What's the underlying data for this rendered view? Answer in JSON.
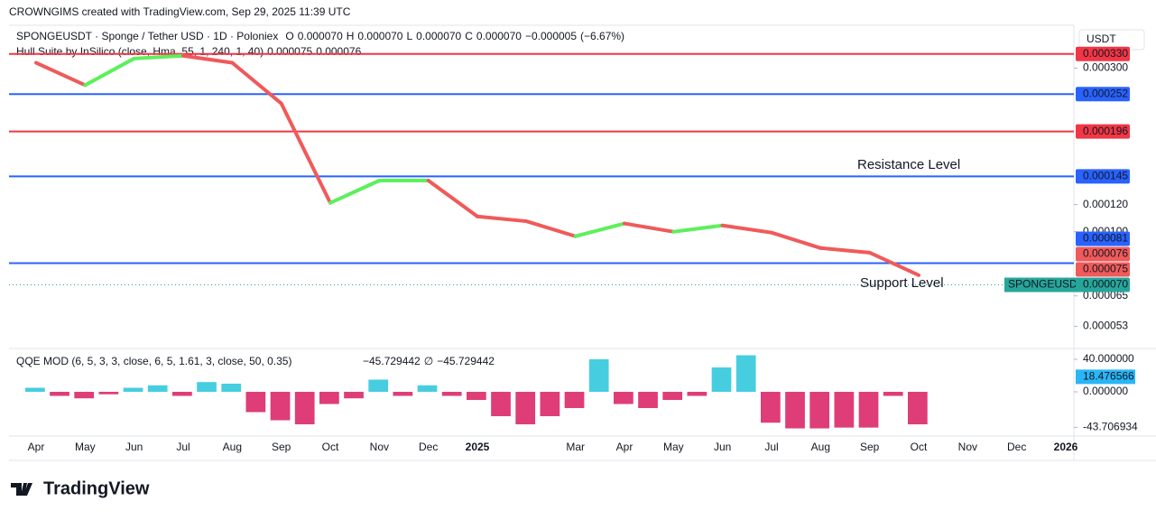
{
  "header": {
    "credit": "CROWNGIMS created with TradingView.com, Sep 29, 2025 11:39 UTC",
    "logo": "TradingView"
  },
  "chart_data": [
    {
      "type": "line",
      "title": "SPONGEUSDT · Sponge / Tether USD · 1D · Poloniex",
      "ohlc_names": [
        "O",
        "H",
        "L",
        "C"
      ],
      "ohlc": [
        {
          "value": 7e-05,
          "label": "0.000070"
        },
        {
          "value": 7e-05,
          "label": "0.000070"
        },
        {
          "value": 7e-05,
          "label": "0.000070"
        },
        {
          "value": 7e-05,
          "label": "0.000070"
        }
      ],
      "change": {
        "value": -5e-06,
        "label": "−0.000005"
      },
      "change_pct": {
        "value": -6.67,
        "label": "(−6.67%)"
      },
      "currency": "USDT",
      "log": true,
      "grid": false,
      "ylim": [
        4.65e-05,
        0.0004
      ],
      "yticks": [
        {
          "value": 0.0003,
          "label": "0.000300"
        },
        {
          "value": 0.00012,
          "label": "0.000120"
        },
        {
          "value": 0.0001,
          "label": "0.000100"
        },
        {
          "value": 6.5e-05,
          "label": "0.000065"
        },
        {
          "value": 5.3e-05,
          "label": "0.000053"
        }
      ],
      "categories": [
        "Apr",
        "May",
        "Jun",
        "Jul",
        "Aug",
        "Sep",
        "Oct",
        "Nov",
        "Dec",
        "2025",
        null,
        "Mar",
        "Apr",
        "May",
        "Jun",
        "Jul",
        "Aug",
        "Sep",
        "Oct",
        "Nov",
        "Dec",
        "2026"
      ],
      "series": [
        {
          "name": "Hull Suite by InSilico (close, Hma, 55, 1, 240, 1, 40)",
          "rise_color": "#5cf05c",
          "fall_color": "#f05a5a",
          "values": [
            0.000311,
            0.0002676,
            0.00032,
            0.000326,
            0.000311,
            0.0002367,
            0.0001214,
            0.000141,
            0.000141,
            0.0001108,
            0.0001073,
            9.7e-05,
            0.0001057,
            0.0001,
            0.0001043,
            9.94e-05,
            8.96e-05,
            8.69e-05,
            7.47e-05,
            null,
            null,
            null
          ],
          "value_labels": [
            {
              "value": 7.5e-05,
              "label": "0.000075"
            },
            {
              "value": 7.6e-05,
              "label": "0.000076"
            }
          ]
        }
      ],
      "levels": [
        {
          "value": 0.00033,
          "label": "0.000330",
          "color": "#f23645"
        },
        {
          "value": 0.000252,
          "label": "0.000252",
          "color": "#2962ff"
        },
        {
          "value": 0.000196,
          "label": "0.000196",
          "color": "#f23645"
        },
        {
          "value": 0.000145,
          "label": "0.000145",
          "color": "#2962ff"
        },
        {
          "value": 8.1e-05,
          "label": "0.000081",
          "color": "#2962ff"
        }
      ],
      "last_price": {
        "value": 7e-05,
        "label": "0.000070",
        "symbol": "SPONGEUSDT",
        "color": "#26a69a"
      },
      "annotations": [
        "Resistance Level",
        "Support Level"
      ],
      "annotation_color": "#f23645"
    },
    {
      "type": "bar",
      "title": "QQE MOD (6, 5, 3, 3, close, 6, 5, 1.61, 3, close, 50, 0.35)",
      "legend_values": [
        {
          "value": -45.729442,
          "label": "−45.729442"
        },
        "∅",
        {
          "value": -45.729442,
          "label": "−45.729442"
        }
      ],
      "ylim": [
        -53.3,
        48.9
      ],
      "yticks": [
        {
          "value": 40,
          "label": "40.000000"
        },
        {
          "value": 0,
          "label": "0.000000"
        },
        {
          "value": -43.706934,
          "label": "-43.706934"
        }
      ],
      "current": {
        "value": 18.476566,
        "label": "18.476566",
        "color": "#29b6f6"
      },
      "pos_color": "#26c6da",
      "neg_color": "#d81b60",
      "values": [
        5,
        -5,
        -8,
        -3,
        5,
        8,
        -5,
        12,
        10,
        -25,
        -35,
        -40,
        -15,
        -8,
        15,
        -5,
        8,
        -5,
        -10,
        -30,
        -40,
        -30,
        -20,
        40,
        -15,
        -20,
        -10,
        -5,
        30,
        45,
        -38,
        -45,
        -45,
        -44,
        -44,
        -5,
        -40,
        null,
        null,
        null,
        null,
        null,
        null,
        null
      ]
    }
  ]
}
